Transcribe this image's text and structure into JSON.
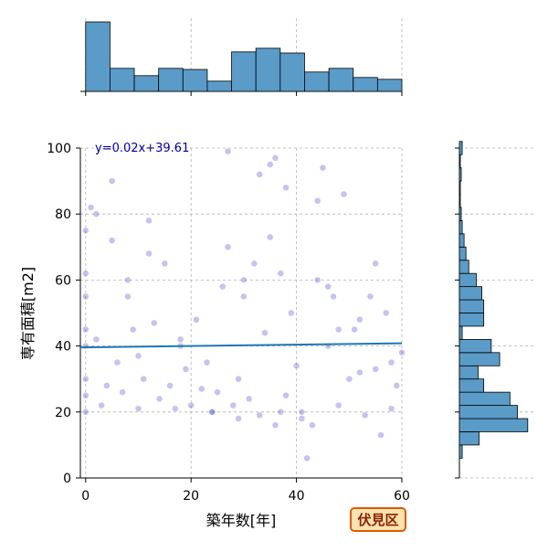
{
  "chart_data": {
    "type": "scatter",
    "xlabel": "築年数[年]",
    "ylabel": "専有面積[m2]",
    "badge": "伏見区",
    "xlim": [
      -1,
      60
    ],
    "ylim": [
      0,
      100
    ],
    "xticks": [
      0,
      20,
      40,
      60
    ],
    "yticks": [
      0,
      20,
      40,
      60,
      80,
      100
    ],
    "grid": true,
    "color": "#3a3acc",
    "x": [
      0,
      0,
      0,
      0,
      0,
      0,
      0,
      0,
      1,
      2,
      3,
      4,
      5,
      6,
      7,
      8,
      9,
      10,
      11,
      12,
      13,
      14,
      15,
      16,
      17,
      18,
      19,
      20,
      21,
      22,
      23,
      24,
      25,
      26,
      27,
      28,
      29,
      30,
      31,
      32,
      33,
      34,
      35,
      36,
      37,
      38,
      39,
      40,
      41,
      42,
      43,
      44,
      45,
      46,
      47,
      48,
      49,
      50,
      51,
      52,
      53,
      54,
      55,
      56,
      57,
      58,
      59,
      60,
      5,
      12,
      27,
      33,
      36,
      44,
      48,
      2,
      30,
      38,
      41,
      52,
      10,
      24,
      35,
      55,
      8,
      18,
      29,
      37,
      46,
      58
    ],
    "y": [
      20,
      25,
      30,
      40,
      45,
      55,
      62,
      75,
      82,
      80,
      22,
      28,
      90,
      35,
      26,
      60,
      45,
      21,
      30,
      78,
      47,
      24,
      65,
      28,
      21,
      40,
      33,
      22,
      48,
      27,
      35,
      20,
      26,
      58,
      99,
      22,
      18,
      60,
      24,
      65,
      19,
      44,
      95,
      16,
      20,
      25,
      50,
      34,
      18,
      6,
      16,
      60,
      94,
      40,
      55,
      22,
      86,
      30,
      45,
      48,
      19,
      55,
      33,
      13,
      50,
      35,
      28,
      38,
      72,
      68,
      70,
      92,
      97,
      84,
      45,
      42,
      55,
      88,
      20,
      32,
      37,
      20,
      73,
      65,
      55,
      42,
      30,
      62,
      58,
      21
    ],
    "regression": {
      "label": "y=0.02x+39.61",
      "slope": 0.02,
      "intercept": 39.61,
      "color": "#1f77b4"
    },
    "top_hist": {
      "bins": [
        0,
        4.615,
        9.231,
        13.846,
        18.462,
        23.077,
        27.692,
        32.308,
        36.923,
        41.538,
        46.154,
        50.769,
        55.385,
        60
      ],
      "counts": [
        190,
        63,
        43,
        63,
        60,
        28,
        108,
        118,
        105,
        53,
        63,
        38,
        33
      ],
      "countlim": [
        0,
        200
      ],
      "color": "#5a9bc8"
    },
    "right_hist": {
      "bins": [
        6,
        10,
        14,
        18,
        22,
        26,
        30,
        34,
        38,
        42,
        46,
        50,
        54,
        58,
        62,
        66,
        70,
        74,
        78,
        82,
        86,
        90,
        94,
        98,
        102
      ],
      "counts": [
        3,
        21,
        73,
        62,
        54,
        26,
        20,
        43,
        34,
        3,
        26,
        26,
        24,
        18,
        10,
        7,
        5,
        3,
        2,
        1,
        1,
        2,
        1,
        3
      ],
      "countlim": [
        0,
        80
      ],
      "color": "#5a9bc8"
    }
  }
}
